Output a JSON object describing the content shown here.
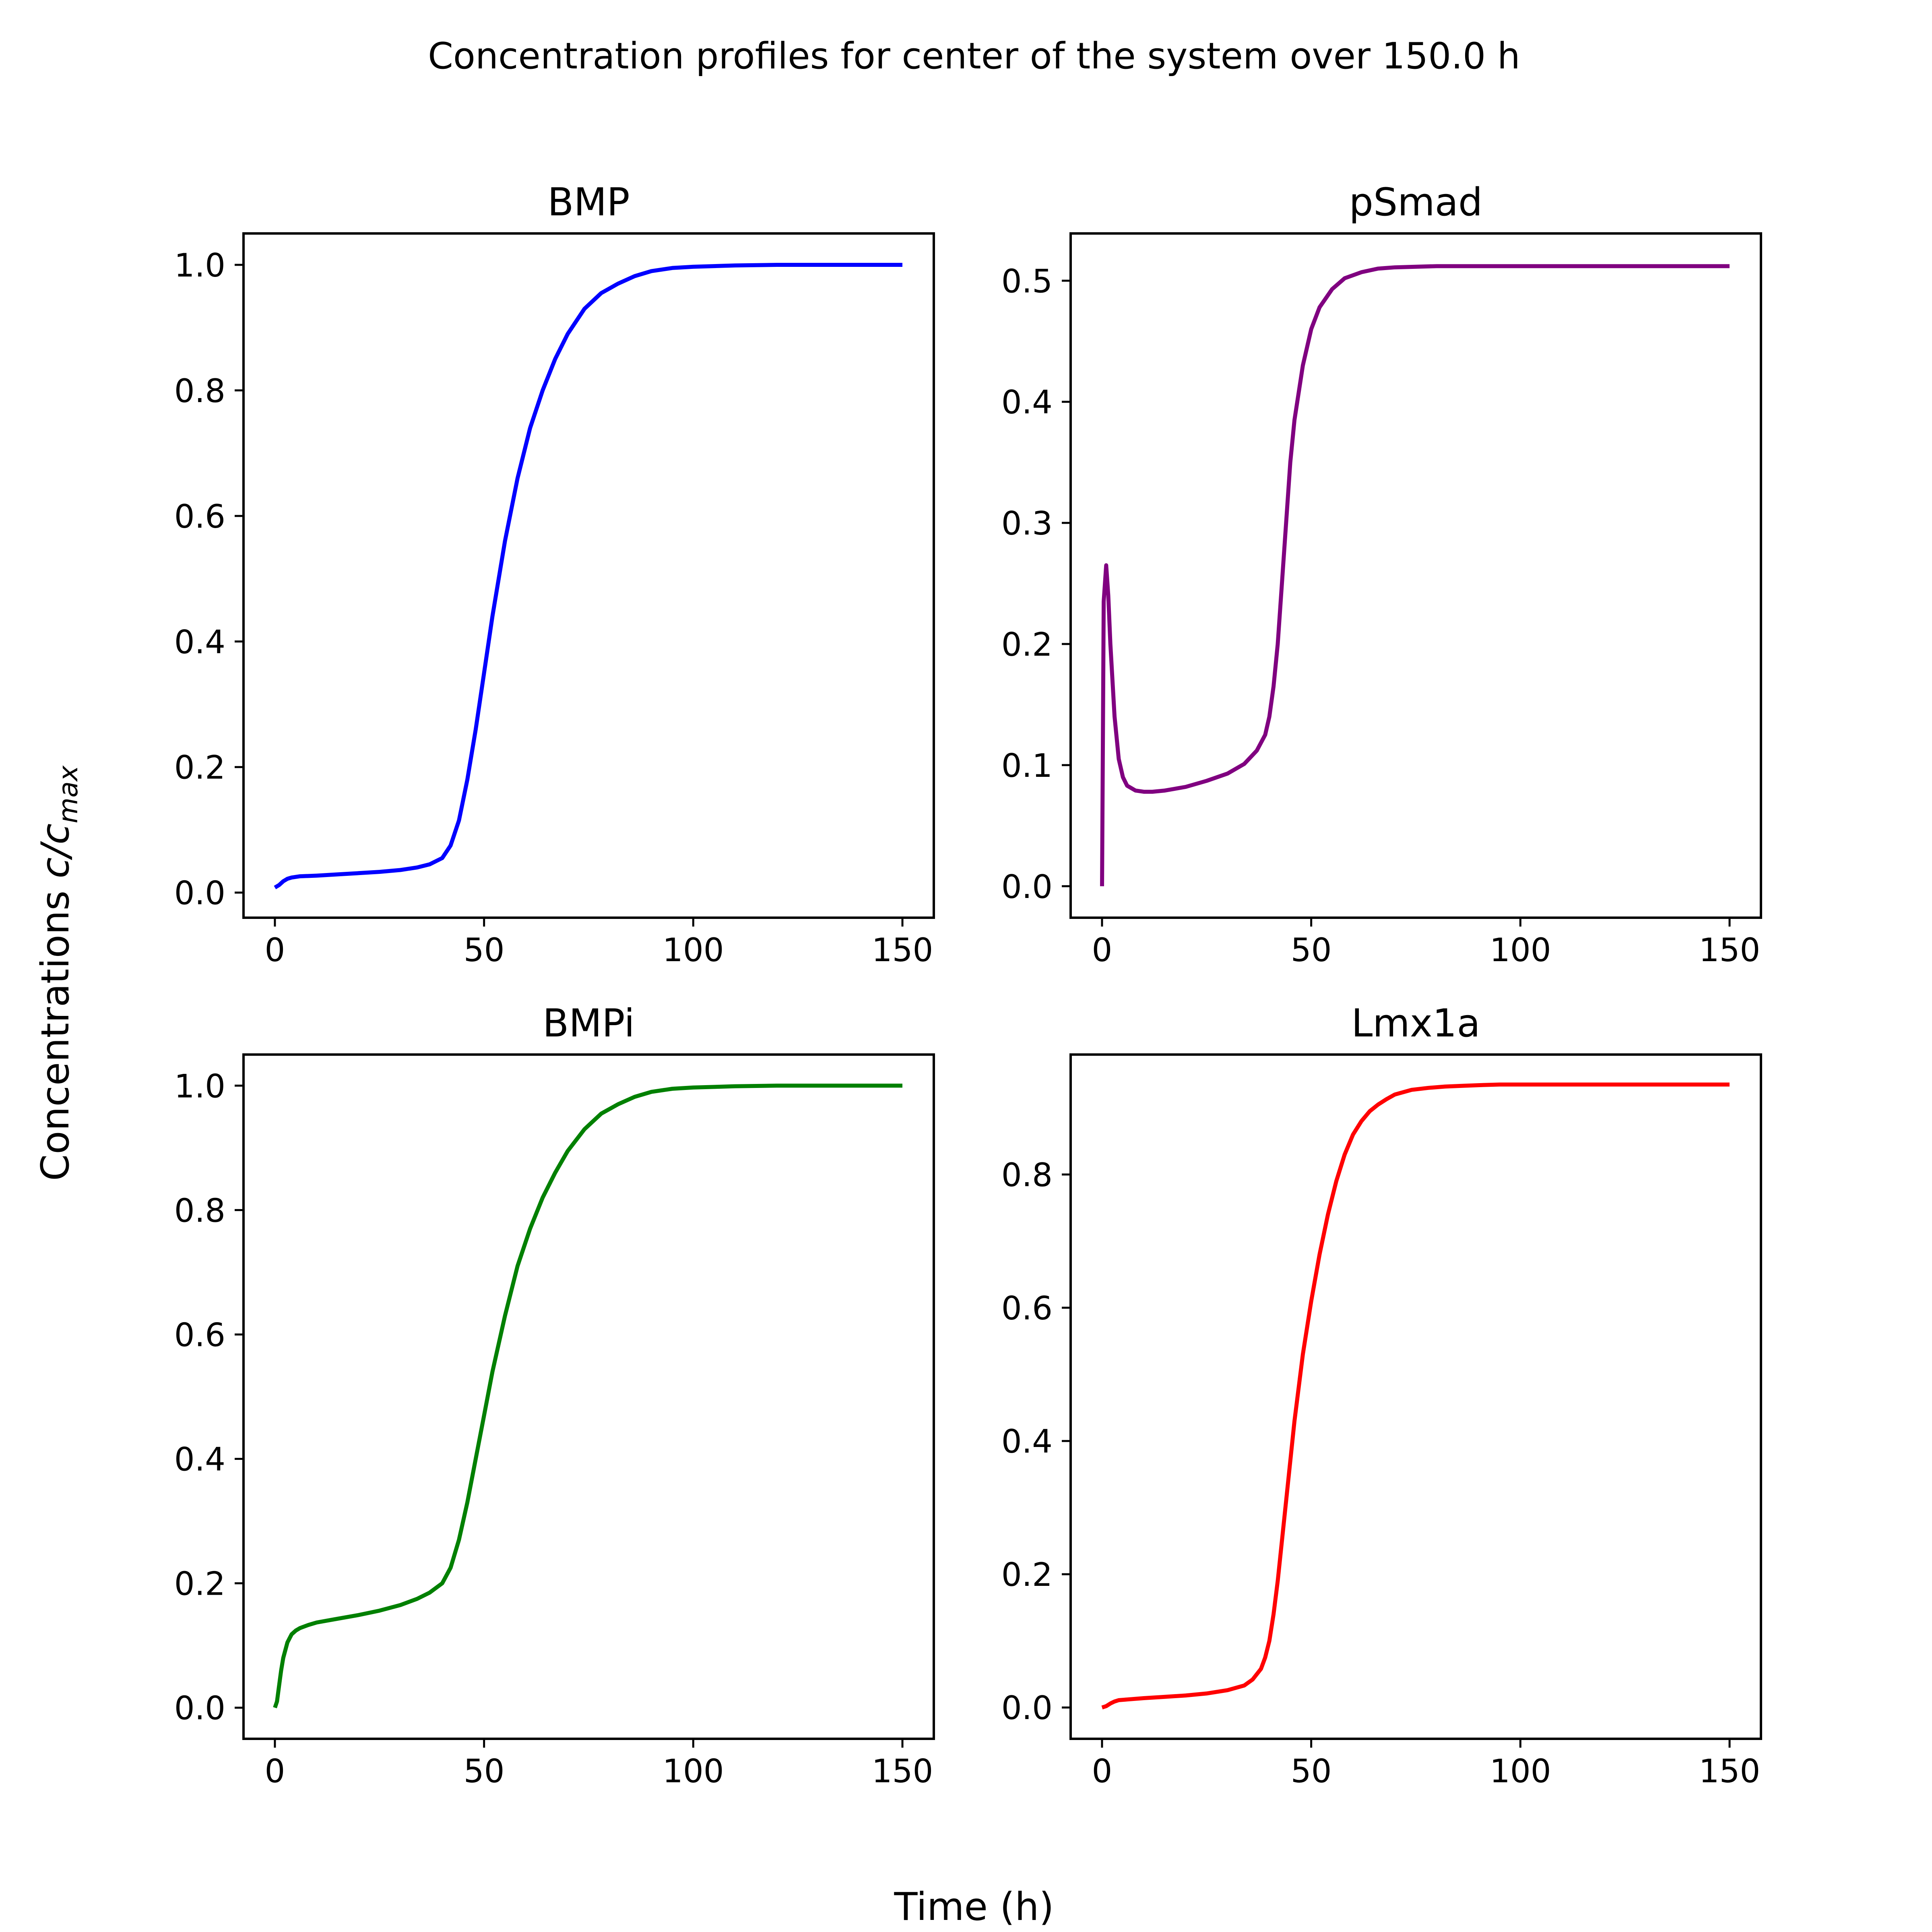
{
  "figure": {
    "title": "Concentration profiles for center of the system over 150.0 h",
    "xlabel": "Time (h)",
    "ylabel_prefix": "Concentrations ",
    "ylabel_var": "c/c",
    "ylabel_sub": "max"
  },
  "chart_data": [
    {
      "type": "line",
      "title": "BMP",
      "color": "#0000ff",
      "xlim": [
        -7.5,
        157.5
      ],
      "ylim": [
        -0.04,
        1.05
      ],
      "xticks": [
        0,
        50,
        100,
        150
      ],
      "xtick_labels": [
        "0",
        "50",
        "100",
        "150"
      ],
      "yticks": [
        0.0,
        0.2,
        0.4,
        0.6,
        0.8,
        1.0
      ],
      "ytick_labels": [
        "0.0",
        "0.2",
        "0.4",
        "0.6",
        "0.8",
        "1.0"
      ],
      "series": [
        {
          "x": [
            0,
            1,
            2,
            3,
            4,
            6,
            10,
            15,
            20,
            25,
            30,
            34,
            37,
            40,
            42,
            44,
            46,
            48,
            50,
            52,
            55,
            58,
            61,
            64,
            67,
            70,
            74,
            78,
            82,
            86,
            90,
            95,
            100,
            110,
            120,
            130,
            140,
            150
          ],
          "y": [
            0.008,
            0.012,
            0.018,
            0.022,
            0.024,
            0.026,
            0.027,
            0.029,
            0.031,
            0.033,
            0.036,
            0.04,
            0.045,
            0.055,
            0.075,
            0.115,
            0.18,
            0.26,
            0.35,
            0.44,
            0.56,
            0.66,
            0.74,
            0.8,
            0.85,
            0.89,
            0.93,
            0.955,
            0.97,
            0.982,
            0.99,
            0.995,
            0.997,
            0.999,
            1.0,
            1.0,
            1.0,
            1.0
          ]
        }
      ]
    },
    {
      "type": "line",
      "title": "pSmad",
      "color": "#800080",
      "xlim": [
        -7.5,
        157.5
      ],
      "ylim": [
        -0.026,
        0.539
      ],
      "xticks": [
        0,
        50,
        100,
        150
      ],
      "xtick_labels": [
        "0",
        "50",
        "100",
        "150"
      ],
      "yticks": [
        0.0,
        0.1,
        0.2,
        0.3,
        0.4,
        0.5
      ],
      "ytick_labels": [
        "0.0",
        "0.1",
        "0.2",
        "0.3",
        "0.4",
        "0.5"
      ],
      "series": [
        {
          "x": [
            0,
            0.4,
            1,
            1.5,
            2,
            3,
            4,
            5,
            6,
            8,
            10,
            12,
            15,
            20,
            25,
            30,
            34,
            37,
            39,
            40,
            41,
            42,
            43,
            44,
            45,
            46,
            48,
            50,
            52,
            55,
            58,
            62,
            66,
            70,
            80,
            90,
            100,
            120,
            150
          ],
          "y": [
            0.0,
            0.235,
            0.265,
            0.24,
            0.2,
            0.14,
            0.105,
            0.09,
            0.083,
            0.079,
            0.078,
            0.078,
            0.079,
            0.082,
            0.087,
            0.093,
            0.101,
            0.112,
            0.125,
            0.14,
            0.165,
            0.2,
            0.25,
            0.3,
            0.35,
            0.385,
            0.43,
            0.46,
            0.478,
            0.493,
            0.502,
            0.507,
            0.51,
            0.511,
            0.512,
            0.512,
            0.512,
            0.512,
            0.512
          ]
        }
      ]
    },
    {
      "type": "line",
      "title": "BMPi",
      "color": "#008000",
      "xlim": [
        -7.5,
        157.5
      ],
      "ylim": [
        -0.05,
        1.05
      ],
      "xticks": [
        0,
        50,
        100,
        150
      ],
      "xtick_labels": [
        "0",
        "50",
        "100",
        "150"
      ],
      "yticks": [
        0.0,
        0.2,
        0.4,
        0.6,
        0.8,
        1.0
      ],
      "ytick_labels": [
        "0.0",
        "0.2",
        "0.4",
        "0.6",
        "0.8",
        "1.0"
      ],
      "series": [
        {
          "x": [
            0,
            0.5,
            1,
            1.5,
            2,
            3,
            4,
            5,
            6,
            8,
            10,
            15,
            20,
            25,
            30,
            34,
            37,
            40,
            42,
            44,
            46,
            48,
            50,
            52,
            55,
            58,
            61,
            64,
            67,
            70,
            74,
            78,
            82,
            86,
            90,
            95,
            100,
            110,
            120,
            130,
            140,
            150
          ],
          "y": [
            0.0,
            0.01,
            0.035,
            0.06,
            0.08,
            0.105,
            0.118,
            0.124,
            0.128,
            0.133,
            0.137,
            0.143,
            0.149,
            0.156,
            0.165,
            0.175,
            0.185,
            0.2,
            0.225,
            0.27,
            0.33,
            0.4,
            0.47,
            0.54,
            0.63,
            0.71,
            0.77,
            0.82,
            0.86,
            0.895,
            0.93,
            0.955,
            0.97,
            0.982,
            0.99,
            0.995,
            0.997,
            0.999,
            1.0,
            1.0,
            1.0,
            1.0
          ]
        }
      ]
    },
    {
      "type": "line",
      "title": "Lmx1a",
      "color": "#ff0000",
      "xlim": [
        -7.5,
        157.5
      ],
      "ylim": [
        -0.047,
        0.98
      ],
      "xticks": [
        0,
        50,
        100,
        150
      ],
      "xtick_labels": [
        "0",
        "50",
        "100",
        "150"
      ],
      "yticks": [
        0.0,
        0.2,
        0.4,
        0.6,
        0.8
      ],
      "ytick_labels": [
        "0.0",
        "0.2",
        "0.4",
        "0.6",
        "0.8"
      ],
      "series": [
        {
          "x": [
            0,
            1,
            2,
            3,
            4,
            6,
            10,
            15,
            20,
            25,
            30,
            34,
            36,
            38,
            39,
            40,
            41,
            42,
            43,
            44,
            45,
            46,
            48,
            50,
            52,
            54,
            56,
            58,
            60,
            62,
            64,
            66,
            68,
            70,
            74,
            78,
            82,
            86,
            90,
            95,
            100,
            110,
            120,
            130,
            140,
            150
          ],
          "y": [
            0.0,
            0.002,
            0.006,
            0.009,
            0.011,
            0.012,
            0.014,
            0.016,
            0.018,
            0.021,
            0.026,
            0.033,
            0.042,
            0.058,
            0.075,
            0.1,
            0.14,
            0.19,
            0.25,
            0.31,
            0.37,
            0.43,
            0.53,
            0.61,
            0.68,
            0.74,
            0.79,
            0.83,
            0.86,
            0.88,
            0.895,
            0.905,
            0.913,
            0.92,
            0.927,
            0.93,
            0.932,
            0.933,
            0.934,
            0.935,
            0.935,
            0.935,
            0.935,
            0.935,
            0.935,
            0.935
          ]
        }
      ]
    }
  ]
}
